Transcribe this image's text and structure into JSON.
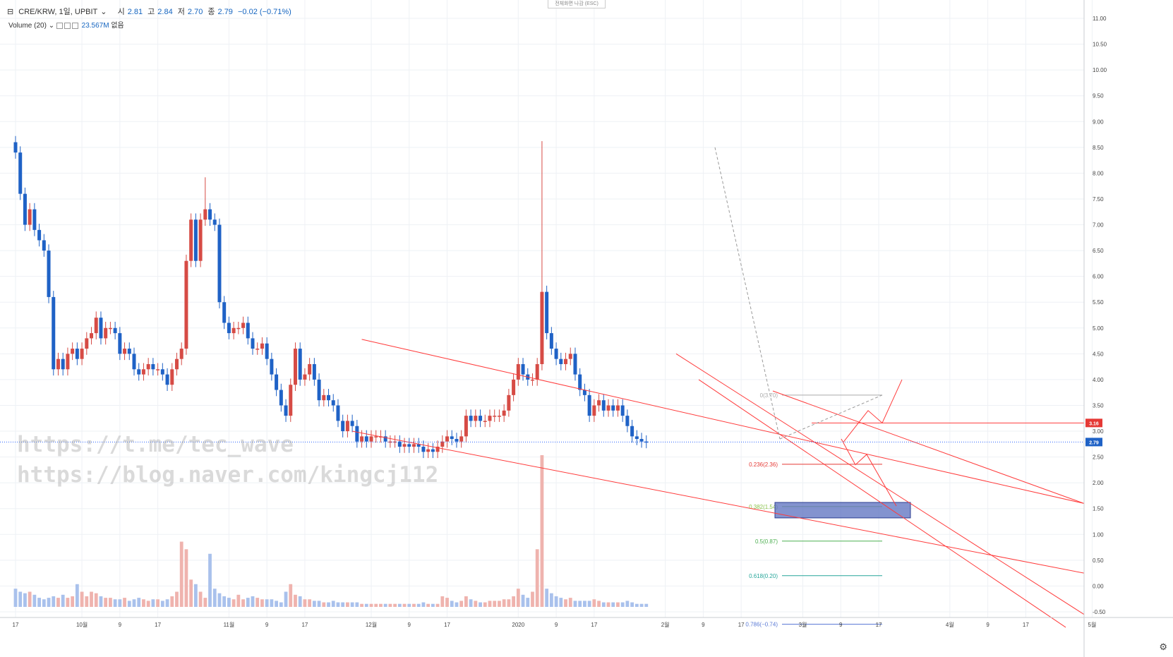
{
  "header": {
    "collapse_icon": "collapse-icon",
    "symbol": "CRE/KRW, 1일, UPBIT",
    "open_label": "시",
    "open": "2.81",
    "high_label": "고",
    "high": "2.84",
    "low_label": "저",
    "low": "2.70",
    "close_label": "종",
    "close": "2.79",
    "change": "−0.02 (−0.71%)"
  },
  "volume_legend": {
    "label": "Volume (20)",
    "value": "23.567M",
    "na": "없음"
  },
  "fullscreen_exit": "전체화면 나감 (ESC)",
  "watermark": {
    "line1": "https://t.me/tec_wave",
    "line2": "https://blog.naver.com/kingcj112"
  },
  "colors": {
    "up": "#d64b45",
    "down": "#1f62c6",
    "trend": "#ff3b3b",
    "grid": "#eef1f5",
    "fib_box": "#5a6fbf"
  },
  "chart_data": {
    "type": "candlestick",
    "title": "CRE/KRW, 1일, UPBIT",
    "ylim": [
      -0.5,
      11.0
    ],
    "y_ticks": [
      "11.00",
      "10.50",
      "10.00",
      "9.50",
      "9.00",
      "8.50",
      "8.00",
      "7.50",
      "7.00",
      "6.50",
      "6.00",
      "5.50",
      "5.00",
      "4.50",
      "4.00",
      "3.50",
      "3.00",
      "2.50",
      "2.00",
      "1.50",
      "1.00",
      "0.50",
      "0.00",
      "-0.50"
    ],
    "x_ticks": [
      {
        "label": "17",
        "day": 0
      },
      {
        "label": "10월",
        "day": 14
      },
      {
        "label": "9",
        "day": 22
      },
      {
        "label": "17",
        "day": 30
      },
      {
        "label": "11월",
        "day": 45
      },
      {
        "label": "9",
        "day": 53
      },
      {
        "label": "17",
        "day": 61
      },
      {
        "label": "12월",
        "day": 75
      },
      {
        "label": "9",
        "day": 83
      },
      {
        "label": "17",
        "day": 91
      },
      {
        "label": "2020",
        "day": 106
      },
      {
        "label": "9",
        "day": 114
      },
      {
        "label": "17",
        "day": 122
      },
      {
        "label": "2월",
        "day": 137
      },
      {
        "label": "9",
        "day": 145
      },
      {
        "label": "17",
        "day": 153
      },
      {
        "label": "3월",
        "day": 166
      },
      {
        "label": "9",
        "day": 174
      },
      {
        "label": "17",
        "day": 182
      },
      {
        "label": "4월",
        "day": 197
      },
      {
        "label": "9",
        "day": 205
      },
      {
        "label": "17",
        "day": 213
      },
      {
        "label": "5월",
        "day": 227
      }
    ],
    "price_tags": {
      "last": "2.79",
      "resistance": "3.16"
    },
    "closes": [
      8.4,
      7.6,
      7.0,
      7.3,
      6.9,
      6.7,
      6.5,
      5.6,
      4.2,
      4.4,
      4.2,
      4.5,
      4.6,
      4.4,
      4.6,
      4.8,
      4.9,
      5.2,
      4.8,
      5.0,
      5.0,
      4.9,
      4.5,
      4.6,
      4.5,
      4.2,
      4.1,
      4.2,
      4.3,
      4.2,
      4.2,
      4.1,
      3.9,
      4.2,
      4.4,
      4.6,
      6.3,
      7.1,
      6.3,
      7.1,
      7.3,
      7.1,
      7.0,
      5.5,
      5.1,
      4.9,
      5.0,
      5.0,
      5.1,
      4.8,
      4.6,
      4.6,
      4.7,
      4.4,
      4.1,
      3.8,
      3.5,
      3.3,
      3.9,
      4.6,
      4.0,
      4.1,
      4.3,
      4.0,
      3.6,
      3.7,
      3.6,
      3.5,
      3.2,
      3.0,
      3.2,
      3.1,
      2.8,
      2.9,
      2.8,
      2.9,
      2.9,
      2.9,
      2.8,
      2.8,
      2.8,
      2.7,
      2.75,
      2.7,
      2.75,
      2.7,
      2.6,
      2.65,
      2.6,
      2.7,
      2.8,
      2.9,
      2.85,
      2.8,
      2.9,
      3.3,
      3.2,
      3.3,
      3.2,
      3.2,
      3.3,
      3.3,
      3.3,
      3.4,
      3.7,
      4.0,
      4.3,
      4.1,
      4.0,
      4.0,
      4.3,
      5.7,
      4.9,
      4.6,
      4.4,
      4.3,
      4.4,
      4.5,
      4.1,
      3.8,
      3.7,
      3.3,
      3.5,
      3.6,
      3.4,
      3.5,
      3.4,
      3.5,
      3.3,
      3.1,
      2.9,
      2.85,
      2.8,
      2.79
    ],
    "volume_rel": [
      0.12,
      0.1,
      0.09,
      0.1,
      0.08,
      0.06,
      0.05,
      0.06,
      0.07,
      0.06,
      0.08,
      0.06,
      0.07,
      0.15,
      0.1,
      0.07,
      0.1,
      0.09,
      0.07,
      0.06,
      0.06,
      0.05,
      0.05,
      0.06,
      0.04,
      0.05,
      0.06,
      0.05,
      0.04,
      0.05,
      0.05,
      0.04,
      0.05,
      0.07,
      0.1,
      0.43,
      0.38,
      0.18,
      0.15,
      0.1,
      0.06,
      0.35,
      0.12,
      0.09,
      0.07,
      0.06,
      0.05,
      0.08,
      0.05,
      0.06,
      0.07,
      0.06,
      0.05,
      0.05,
      0.05,
      0.04,
      0.03,
      0.1,
      0.15,
      0.08,
      0.07,
      0.05,
      0.05,
      0.04,
      0.04,
      0.03,
      0.03,
      0.04,
      0.03,
      0.03,
      0.03,
      0.03,
      0.03,
      0.02,
      0.02,
      0.02,
      0.02,
      0.02,
      0.02,
      0.02,
      0.02,
      0.02,
      0.02,
      0.02,
      0.02,
      0.02,
      0.03,
      0.02,
      0.02,
      0.02,
      0.07,
      0.06,
      0.04,
      0.03,
      0.04,
      0.07,
      0.05,
      0.04,
      0.03,
      0.03,
      0.04,
      0.04,
      0.04,
      0.05,
      0.05,
      0.07,
      0.12,
      0.08,
      0.06,
      0.1,
      0.38,
      1.0,
      0.12,
      0.09,
      0.07,
      0.06,
      0.05,
      0.06,
      0.04,
      0.04,
      0.04,
      0.04,
      0.05,
      0.04,
      0.03,
      0.03,
      0.03,
      0.03,
      0.03,
      0.04,
      0.03,
      0.02,
      0.02,
      0.02
    ],
    "fibonacci": [
      {
        "label": "0(3.70)",
        "value": 3.7,
        "color": "#aaaaaa"
      },
      {
        "label": "0.236(2.36)",
        "value": 2.36,
        "color": "#e53935"
      },
      {
        "label": "0.382(1.54)",
        "value": 1.54,
        "color": "#8bc34a"
      },
      {
        "label": "0.5(0.87)",
        "value": 0.87,
        "color": "#4caf50"
      },
      {
        "label": "0.618(0.20)",
        "value": 0.2,
        "color": "#26a69a"
      },
      {
        "label": "0.786(−0.74)",
        "value": -0.74,
        "color": "#5c7bd6"
      }
    ]
  }
}
